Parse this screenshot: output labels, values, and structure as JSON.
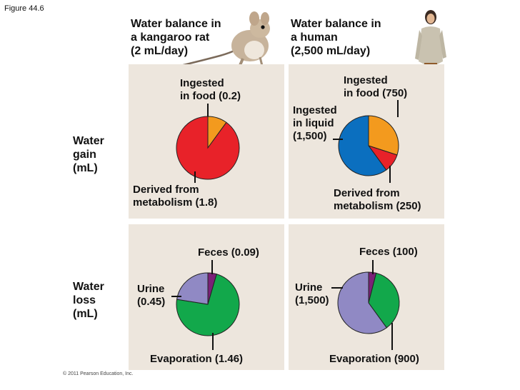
{
  "figure_label": "Figure 44.6",
  "columns": [
    {
      "title_lines": [
        "Water balance in",
        "a kangaroo rat",
        "(2 mL/day)"
      ]
    },
    {
      "title_lines": [
        "Water balance in",
        "a human",
        "(2,500 mL/day)"
      ]
    }
  ],
  "rows": [
    {
      "title_lines": [
        "Water",
        "gain",
        "(mL)"
      ]
    },
    {
      "title_lines": [
        "Water",
        "loss",
        "(mL)"
      ]
    }
  ],
  "colors": {
    "food": "#f39a1e",
    "metabolism": "#e82229",
    "liquid": "#0b6fbf",
    "feces": "#7a2177",
    "urine": "#9089c4",
    "evaporation": "#12a84b",
    "panel": "#ede6dd"
  },
  "chart_data": [
    {
      "type": "pie",
      "id": "rat-gain",
      "slices": [
        {
          "label": "Ingested in food",
          "value": 0.2,
          "color_key": "food",
          "text_lines": [
            "Ingested",
            "in food (0.2)"
          ]
        },
        {
          "label": "Derived from metabolism",
          "value": 1.8,
          "color_key": "metabolism",
          "text_lines": [
            "Derived from",
            "metabolism (1.8)"
          ]
        }
      ]
    },
    {
      "type": "pie",
      "id": "human-gain",
      "slices": [
        {
          "label": "Ingested in food",
          "value": 750,
          "color_key": "food",
          "text_lines": [
            "Ingested",
            "in food (750)"
          ]
        },
        {
          "label": "Derived from metabolism",
          "value": 250,
          "color_key": "metabolism",
          "text_lines": [
            "Derived from",
            "metabolism (250)"
          ]
        },
        {
          "label": "Ingested in liquid",
          "value": 1500,
          "color_key": "liquid",
          "text_lines": [
            "Ingested",
            "in liquid",
            "(1,500)"
          ]
        }
      ]
    },
    {
      "type": "pie",
      "id": "rat-loss",
      "slices": [
        {
          "label": "Feces",
          "value": 0.09,
          "color_key": "feces",
          "text_lines": [
            "Feces (0.09)"
          ]
        },
        {
          "label": "Evaporation",
          "value": 1.46,
          "color_key": "evaporation",
          "text_lines": [
            "Evaporation (1.46)"
          ]
        },
        {
          "label": "Urine",
          "value": 0.45,
          "color_key": "urine",
          "text_lines": [
            "Urine",
            "(0.45)"
          ]
        }
      ]
    },
    {
      "type": "pie",
      "id": "human-loss",
      "slices": [
        {
          "label": "Feces",
          "value": 100,
          "color_key": "feces",
          "text_lines": [
            "Feces (100)"
          ]
        },
        {
          "label": "Evaporation",
          "value": 900,
          "color_key": "evaporation",
          "text_lines": [
            "Evaporation (900)"
          ]
        },
        {
          "label": "Urine",
          "value": 1500,
          "color_key": "urine",
          "text_lines": [
            "Urine",
            "(1,500)"
          ]
        }
      ]
    }
  ],
  "copyright": "© 2011 Pearson Education, Inc."
}
